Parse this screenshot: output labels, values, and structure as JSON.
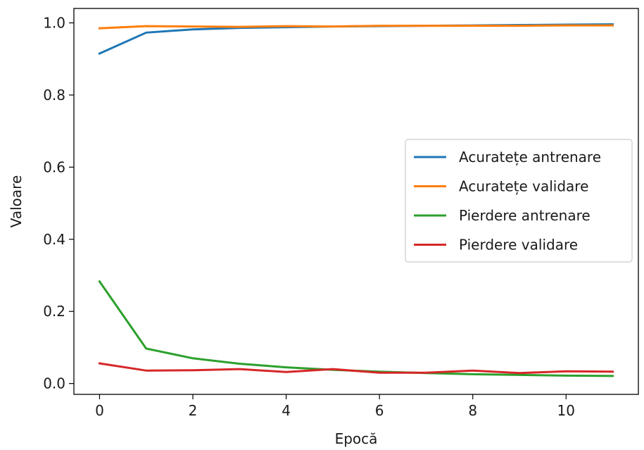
{
  "chart_data": {
    "type": "line",
    "title": "",
    "xlabel": "Epocă",
    "ylabel": "Valoare",
    "x": [
      0,
      1,
      2,
      3,
      4,
      5,
      6,
      7,
      8,
      9,
      10,
      11
    ],
    "xlim": [
      -0.55,
      11.55
    ],
    "ylim": [
      -0.03,
      1.04
    ],
    "xticks": [
      0,
      2,
      4,
      6,
      8,
      10
    ],
    "yticks": [
      0.0,
      0.2,
      0.4,
      0.6,
      0.8,
      1.0
    ],
    "xtick_labels": [
      "0",
      "2",
      "4",
      "6",
      "8",
      "10"
    ],
    "ytick_labels": [
      "0.0",
      "0.2",
      "0.4",
      "0.6",
      "0.8",
      "1.0"
    ],
    "grid": false,
    "legend_position": "center-right",
    "series": [
      {
        "name": "Acuratețe antrenare",
        "color": "#1f77b4",
        "values": [
          0.915,
          0.973,
          0.982,
          0.986,
          0.988,
          0.99,
          0.991,
          0.992,
          0.993,
          0.994,
          0.995,
          0.996
        ]
      },
      {
        "name": "Acuratețe validare",
        "color": "#ff7f0e",
        "values": [
          0.985,
          0.991,
          0.99,
          0.989,
          0.991,
          0.99,
          0.992,
          0.992,
          0.992,
          0.992,
          0.993,
          0.993
        ]
      },
      {
        "name": "Pierdere antrenare",
        "color": "#2ca02c",
        "values": [
          0.283,
          0.097,
          0.07,
          0.055,
          0.045,
          0.038,
          0.033,
          0.029,
          0.026,
          0.024,
          0.022,
          0.021
        ]
      },
      {
        "name": "Pierdere validare",
        "color": "#d62728",
        "values": [
          0.056,
          0.036,
          0.037,
          0.04,
          0.032,
          0.04,
          0.03,
          0.03,
          0.036,
          0.029,
          0.034,
          0.033
        ]
      }
    ]
  }
}
